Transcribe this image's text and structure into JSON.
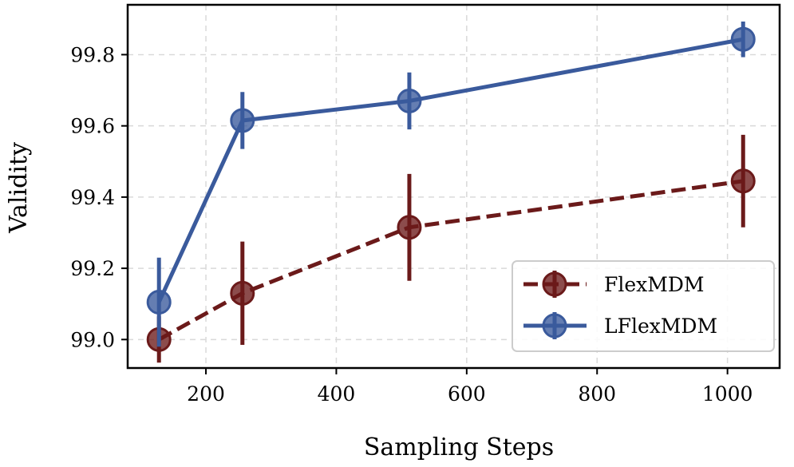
{
  "chart_data": {
    "type": "line",
    "title": "",
    "xlabel": "Sampling Steps",
    "ylabel": "Validity",
    "xlim": [
      80,
      1080
    ],
    "ylim": [
      98.92,
      99.94
    ],
    "xticks": [
      200,
      400,
      600,
      800,
      1000
    ],
    "yticks": [
      99.0,
      99.2,
      99.4,
      99.6,
      99.8
    ],
    "xtick_labels": [
      "200",
      "400",
      "600",
      "800",
      "1000"
    ],
    "ytick_labels": [
      "99.0",
      "99.2",
      "99.4",
      "99.6",
      "99.8"
    ],
    "grid": true,
    "legend_position": "lower-right",
    "series": [
      {
        "name": "FlexMDM",
        "color": "#6b1a1a",
        "linestyle": "dashed",
        "marker": "circle",
        "x": [
          128,
          256,
          512,
          1024
        ],
        "y": [
          99.0,
          99.13,
          99.315,
          99.445
        ],
        "err": [
          0.065,
          0.145,
          0.15,
          0.13
        ]
      },
      {
        "name": "LFlexMDM",
        "color": "#3a5a9c",
        "linestyle": "solid",
        "marker": "circle",
        "x": [
          128,
          256,
          512,
          1024
        ],
        "y": [
          99.105,
          99.615,
          99.67,
          99.843
        ],
        "err": [
          0.125,
          0.08,
          0.08,
          0.05
        ]
      }
    ]
  }
}
